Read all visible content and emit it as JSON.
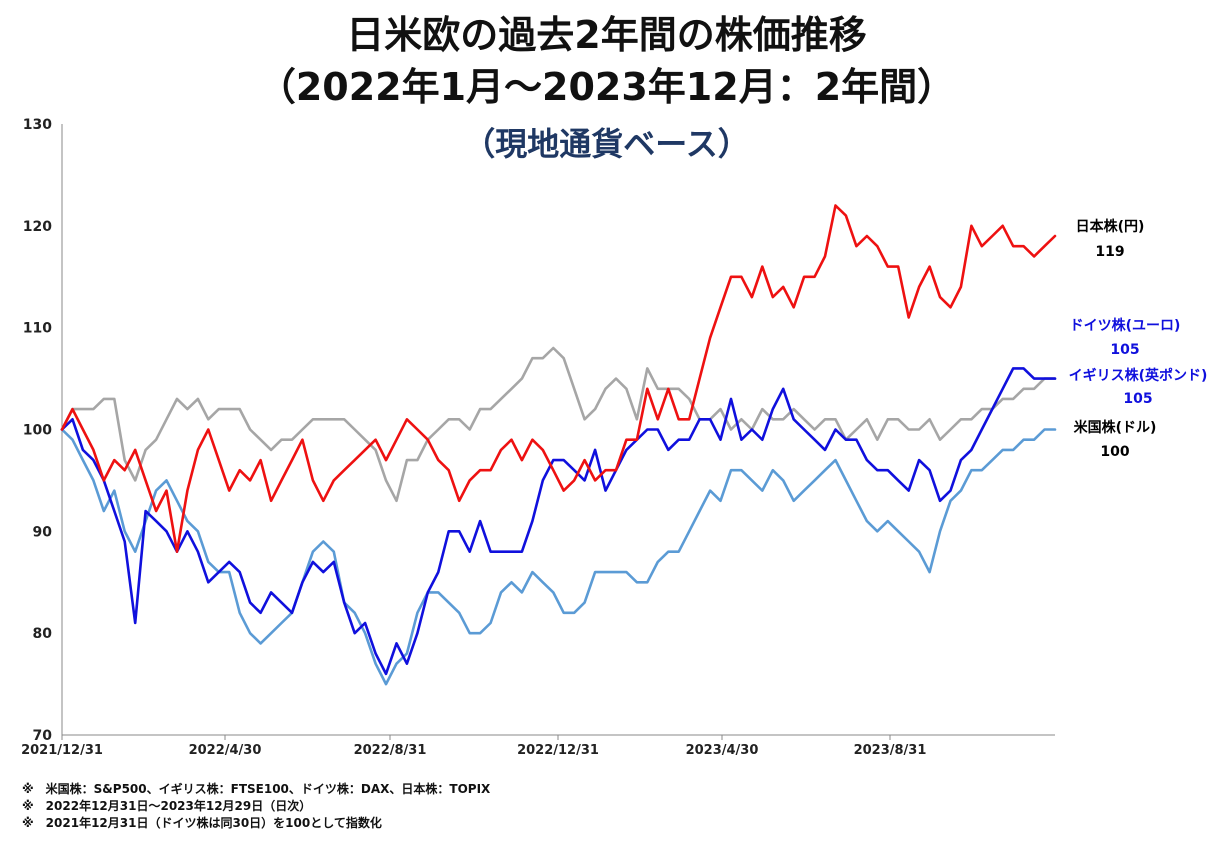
{
  "title_lines": [
    "日米欧の過去2年間の株価推移",
    "（2022年1月～2023年12月：2年間）",
    "（現地通貨ベース）"
  ],
  "chart_data": {
    "type": "line",
    "ylim": [
      70,
      130
    ],
    "yticks": [
      130,
      120,
      110,
      100,
      90,
      80,
      70
    ],
    "xticks": [
      "2021/12/31",
      "2022/4/30",
      "2022/8/31",
      "2022/12/31",
      "2023/4/30",
      "2023/8/31"
    ],
    "series": [
      {
        "name": "日本株(円)",
        "end_value": "119",
        "color": "#ee1111",
        "values": [
          100,
          102,
          100,
          98,
          95,
          97,
          96,
          98,
          95,
          92,
          94,
          88,
          94,
          98,
          100,
          97,
          94,
          96,
          95,
          97,
          93,
          95,
          97,
          99,
          95,
          93,
          95,
          96,
          97,
          98,
          99,
          97,
          99,
          101,
          100,
          99,
          97,
          96,
          93,
          95,
          96,
          96,
          98,
          99,
          97,
          99,
          98,
          96,
          94,
          95,
          97,
          95,
          96,
          96,
          99,
          99,
          104,
          101,
          104,
          101,
          101,
          105,
          109,
          112,
          115,
          115,
          113,
          116,
          113,
          114,
          112,
          115,
          115,
          117,
          122,
          121,
          118,
          119,
          118,
          116,
          116,
          111,
          114,
          116,
          113,
          112,
          114,
          120,
          118,
          119,
          120,
          118,
          118,
          117,
          118,
          119
        ]
      },
      {
        "name": "ドイツ株(ユーロ)",
        "end_value": "105",
        "color": "#1010dd",
        "values": [
          100,
          101,
          98,
          97,
          95,
          92,
          89,
          81,
          92,
          91,
          90,
          88,
          90,
          88,
          85,
          86,
          87,
          86,
          83,
          82,
          84,
          83,
          82,
          85,
          87,
          86,
          87,
          83,
          80,
          81,
          78,
          76,
          79,
          77,
          80,
          84,
          86,
          90,
          90,
          88,
          91,
          88,
          88,
          88,
          88,
          91,
          95,
          97,
          97,
          96,
          95,
          98,
          94,
          96,
          98,
          99,
          100,
          100,
          98,
          99,
          99,
          101,
          101,
          99,
          103,
          99,
          100,
          99,
          102,
          104,
          101,
          100,
          99,
          98,
          100,
          99,
          99,
          97,
          96,
          96,
          95,
          94,
          97,
          96,
          93,
          94,
          97,
          98,
          100,
          102,
          104,
          106,
          106,
          105,
          105,
          105
        ]
      },
      {
        "name": "イギリス株(英ポンド)",
        "end_value": "105",
        "color": "#a6a6a6",
        "values": [
          100,
          102,
          102,
          102,
          103,
          103,
          97,
          95,
          98,
          99,
          101,
          103,
          102,
          103,
          101,
          102,
          102,
          102,
          100,
          99,
          98,
          99,
          99,
          100,
          101,
          101,
          101,
          101,
          100,
          99,
          98,
          95,
          93,
          97,
          97,
          99,
          100,
          101,
          101,
          100,
          102,
          102,
          103,
          104,
          105,
          107,
          107,
          108,
          107,
          104,
          101,
          102,
          104,
          105,
          104,
          101,
          106,
          104,
          104,
          104,
          103,
          101,
          101,
          102,
          100,
          101,
          100,
          102,
          101,
          101,
          102,
          101,
          100,
          101,
          101,
          99,
          100,
          101,
          99,
          101,
          101,
          100,
          100,
          101,
          99,
          100,
          101,
          101,
          102,
          102,
          103,
          103,
          104,
          104,
          105,
          105
        ]
      },
      {
        "name": "米国株(ドル)",
        "end_value": "100",
        "color": "#5b9bd5",
        "values": [
          100,
          99,
          97,
          95,
          92,
          94,
          90,
          88,
          91,
          94,
          95,
          93,
          91,
          90,
          87,
          86,
          86,
          82,
          80,
          79,
          80,
          81,
          82,
          85,
          88,
          89,
          88,
          83,
          82,
          80,
          77,
          75,
          77,
          78,
          82,
          84,
          84,
          83,
          82,
          80,
          80,
          81,
          84,
          85,
          84,
          86,
          85,
          84,
          82,
          82,
          83,
          86,
          86,
          86,
          86,
          85,
          85,
          87,
          88,
          88,
          90,
          92,
          94,
          93,
          96,
          96,
          95,
          94,
          96,
          95,
          93,
          94,
          95,
          96,
          97,
          95,
          93,
          91,
          90,
          91,
          90,
          89,
          88,
          86,
          90,
          93,
          94,
          96,
          96,
          97,
          98,
          98,
          99,
          99,
          100,
          100
        ]
      }
    ]
  },
  "notes": [
    "※　米国株：S&P500、イギリス株：FTSE100、ドイツ株：DAX、日本株：TOPIX",
    "※　2022年12月31日～2023年12月29日（日次）",
    "※　2021年12月31日（ドイツ株は同30日）を100として指数化"
  ]
}
